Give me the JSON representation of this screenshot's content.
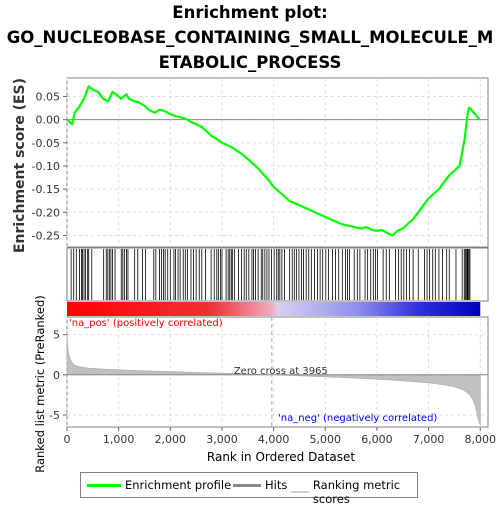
{
  "title_lines": [
    "Enrichment plot:",
    "GO_NUCLEOBASE_CONTAINING_SMALL_MOLECULE_M",
    "ETABOLIC_PROCESS"
  ],
  "colors": {
    "enrichment": "#00ff00",
    "hits": "#000000",
    "ranking": "#c0c0c0",
    "pos_label": "#ff0000",
    "neg_label": "#0000ff",
    "pos_strong": "#ee0000",
    "neg_strong": "#0000cc"
  },
  "legend": {
    "enrichment": "Enrichment profile",
    "hits": "Hits",
    "ranking": "Ranking metric scores"
  },
  "chart_data": {
    "type": "line",
    "es_panel": {
      "ylabel": "Enrichment score (ES)",
      "ylim": [
        -0.275,
        0.09
      ],
      "yticks": [
        0.05,
        0.0,
        -0.05,
        -0.1,
        -0.15,
        -0.2,
        -0.25
      ],
      "ytick_labels": [
        "0.05",
        "0.00",
        "-0.05",
        "-0.10",
        "-0.15",
        "-0.20",
        "-0.25"
      ],
      "grid": true,
      "series": [
        {
          "x": [
            0,
            100,
            150,
            250,
            330,
            420,
            500,
            600,
            700,
            800,
            880,
            950,
            1050,
            1150,
            1200,
            1300,
            1400,
            1500,
            1600,
            1700,
            1800,
            1900,
            2000,
            2100,
            2200,
            2300,
            2400,
            2500,
            2600,
            2700,
            2800,
            2900,
            3000,
            3100,
            3200,
            3300,
            3400,
            3500,
            3600,
            3700,
            3800,
            3900,
            4000,
            4100,
            4200,
            4300,
            4400,
            4500,
            4600,
            4700,
            4800,
            4900,
            5000,
            5100,
            5200,
            5300,
            5400,
            5500,
            5600,
            5700,
            5800,
            5900,
            6000,
            6100,
            6200,
            6300,
            6400,
            6500,
            6600,
            6700,
            6800,
            6900,
            7000,
            7100,
            7200,
            7300,
            7400,
            7500,
            7600,
            7650,
            7700,
            7720,
            7740,
            7760,
            7780,
            7800,
            7850,
            7900,
            7950,
            7990
          ],
          "y": [
            0.0,
            -0.01,
            0.015,
            0.03,
            0.045,
            0.072,
            0.065,
            0.06,
            0.045,
            0.04,
            0.06,
            0.055,
            0.045,
            0.055,
            0.045,
            0.04,
            0.037,
            0.03,
            0.02,
            0.015,
            0.022,
            0.018,
            0.012,
            0.008,
            0.005,
            0.002,
            -0.005,
            -0.01,
            -0.015,
            -0.025,
            -0.035,
            -0.042,
            -0.05,
            -0.055,
            -0.06,
            -0.068,
            -0.075,
            -0.085,
            -0.095,
            -0.105,
            -0.118,
            -0.13,
            -0.145,
            -0.155,
            -0.165,
            -0.175,
            -0.18,
            -0.185,
            -0.19,
            -0.195,
            -0.2,
            -0.205,
            -0.21,
            -0.215,
            -0.22,
            -0.225,
            -0.228,
            -0.23,
            -0.233,
            -0.235,
            -0.232,
            -0.238,
            -0.24,
            -0.238,
            -0.245,
            -0.25,
            -0.24,
            -0.235,
            -0.225,
            -0.215,
            -0.2,
            -0.185,
            -0.17,
            -0.16,
            -0.15,
            -0.135,
            -0.12,
            -0.11,
            -0.1,
            -0.07,
            -0.04,
            -0.02,
            0.0,
            0.015,
            0.025,
            0.025,
            0.018,
            0.012,
            0.005,
            0.0
          ]
        }
      ]
    },
    "hits": [
      80,
      130,
      180,
      240,
      280,
      300,
      330,
      360,
      400,
      420,
      480,
      710,
      760,
      790,
      820,
      850,
      880,
      930,
      1050,
      1080,
      1110,
      1150,
      1180,
      1310,
      1370,
      1460,
      1520,
      1680,
      1720,
      1790,
      1830,
      1870,
      1900,
      1950,
      2000,
      2070,
      2100,
      2150,
      2190,
      2250,
      2290,
      2330,
      2400,
      2450,
      2500,
      2560,
      2610,
      2680,
      2790,
      2850,
      2900,
      2930,
      2970,
      3000,
      3080,
      3120,
      3150,
      3180,
      3200,
      3240,
      3320,
      3380,
      3430,
      3470,
      3520,
      3580,
      3610,
      3650,
      3700,
      3760,
      3790,
      3830,
      3870,
      3910,
      3960,
      4010,
      4060,
      4090,
      4120,
      4160,
      4210,
      4310,
      4360,
      4400,
      4440,
      4490,
      4540,
      4580,
      4630,
      4680,
      4730,
      4790,
      4850,
      4900,
      4950,
      5010,
      5060,
      5140,
      5200,
      5260,
      5330,
      5390,
      5430,
      5470,
      5560,
      5620,
      5670,
      5770,
      5820,
      5880,
      5930,
      5970,
      6010,
      6120,
      6180,
      6240,
      6360,
      6420,
      6470,
      6520,
      6570,
      6630,
      6700,
      6800,
      6920,
      6970,
      7020,
      7080,
      7130,
      7200,
      7270,
      7350,
      7400,
      7530,
      7650,
      7690,
      7710,
      7730,
      7750,
      7760,
      7780,
      7800
    ],
    "ranked_metric": {
      "ylabel": "Ranked list metric (PreRanked)",
      "xlabel": "Rank in Ordered Dataset",
      "ylim": [
        -6.5,
        7.2
      ],
      "yticks": [
        5,
        0,
        -5
      ],
      "ytick_labels": [
        "5",
        "0",
        "-5"
      ],
      "x": [
        0,
        10,
        30,
        60,
        100,
        150,
        250,
        400,
        600,
        1000,
        1500,
        2000,
        2500,
        3000,
        3500,
        3965,
        4500,
        5000,
        5500,
        6000,
        6500,
        7000,
        7300,
        7500,
        7600,
        7700,
        7800,
        7850,
        7900,
        7930,
        7960,
        7980,
        8000
      ],
      "values": [
        5.5,
        3.8,
        2.8,
        2.0,
        1.5,
        1.2,
        1.0,
        0.85,
        0.75,
        0.62,
        0.5,
        0.4,
        0.3,
        0.2,
        0.1,
        0.0,
        -0.12,
        -0.25,
        -0.4,
        -0.55,
        -0.75,
        -1.0,
        -1.25,
        -1.5,
        -1.7,
        -2.0,
        -2.5,
        -3.0,
        -3.8,
        -4.6,
        -5.5,
        -6.0,
        -6.2
      ],
      "zero_cross": 3965,
      "zero_cross_label": "Zero cross at 3965",
      "pos_label": "'na_pos' (positively correlated)",
      "neg_label": "'na_neg' (negatively correlated)"
    },
    "xlim": [
      0,
      8000
    ],
    "xticks": [
      0,
      1000,
      2000,
      3000,
      4000,
      5000,
      6000,
      7000,
      8000
    ],
    "xtick_labels": [
      "0",
      "1,000",
      "2,000",
      "3,000",
      "4,000",
      "5,000",
      "6,000",
      "7,000",
      "8,000"
    ]
  }
}
